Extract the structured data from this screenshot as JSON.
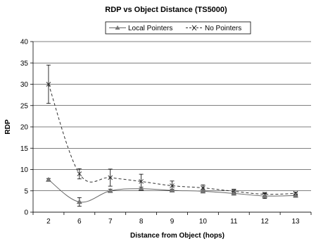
{
  "chart_data": {
    "type": "line",
    "title": "RDP vs Object Distance (TS5000)",
    "xlabel": "Distance from Object (hops)",
    "ylabel": "RDP",
    "categories": [
      "2",
      "6",
      "7",
      "8",
      "9",
      "10",
      "11",
      "12",
      "13"
    ],
    "ylim": [
      0,
      40
    ],
    "yticks": [
      0,
      5,
      10,
      15,
      20,
      25,
      30,
      35,
      40
    ],
    "grid": "horizontal",
    "legend": "top",
    "series": [
      {
        "name": "Local Pointers",
        "marker": "triangle",
        "line": "solid",
        "color": "#666666",
        "values": [
          7.6,
          2.4,
          5.0,
          5.5,
          5.1,
          4.9,
          4.4,
          3.8,
          3.9
        ],
        "errors": [
          0.3,
          1.0,
          0.4,
          0.4,
          0.3,
          0.4,
          0.4,
          0.6,
          0.4
        ]
      },
      {
        "name": "No Pointers",
        "marker": "x",
        "line": "dashed",
        "color": "#333333",
        "values": [
          30.0,
          9.0,
          8.1,
          7.2,
          6.2,
          5.7,
          4.9,
          4.2,
          4.4
        ],
        "errors": [
          4.5,
          1.2,
          2.0,
          1.7,
          1.1,
          0.7,
          0.5,
          0.4,
          0.3
        ]
      }
    ]
  }
}
